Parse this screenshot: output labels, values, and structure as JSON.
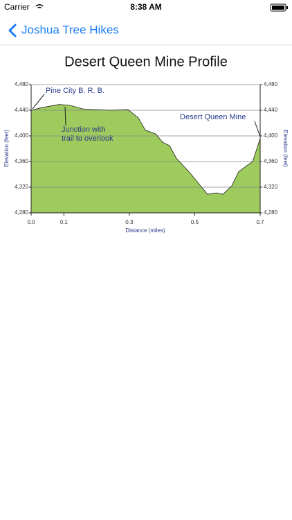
{
  "status_bar": {
    "carrier": "Carrier",
    "time": "8:38 AM"
  },
  "nav": {
    "back_title": "Joshua Tree Hikes"
  },
  "chart_data": {
    "type": "area",
    "title": "Desert Queen Mine Profile",
    "x_label": "Distance (miles)",
    "y_label": "Elevation (feet)",
    "x": [
      0,
      0.032,
      0.085,
      0.116,
      0.159,
      0.243,
      0.296,
      0.328,
      0.349,
      0.381,
      0.402,
      0.423,
      0.444,
      0.486,
      0.518,
      0.539,
      0.565,
      0.586,
      0.613,
      0.634,
      0.655,
      0.677,
      0.7
    ],
    "values": [
      4440,
      4444,
      4449,
      4448,
      4442,
      4440,
      4441,
      4428,
      4409,
      4403,
      4390,
      4385,
      4365,
      4342,
      4322,
      4309,
      4311,
      4309,
      4322,
      4344,
      4352,
      4360,
      4396
    ],
    "color": "#9dcb5d",
    "xlim": [
      0,
      0.7
    ],
    "xticks": [
      {
        "value": 0,
        "label": "0.0"
      },
      0.1,
      0.3,
      0.5,
      0.7
    ],
    "ylim": [
      4280,
      4480
    ],
    "yticks": [
      {
        "value": 4280,
        "label": "4,280"
      },
      {
        "value": 4320,
        "label": "4,320"
      },
      {
        "value": 4360,
        "label": "4,360"
      },
      {
        "value": 4400,
        "label": "4,400"
      },
      {
        "value": 4440,
        "label": "4,440"
      },
      {
        "value": 4480,
        "label": "4,480"
      }
    ],
    "grid": true,
    "annotations": [
      "Pine City B. R. B.",
      "Junction with",
      "trail to overlook",
      "Desert Queen Mine"
    ]
  }
}
